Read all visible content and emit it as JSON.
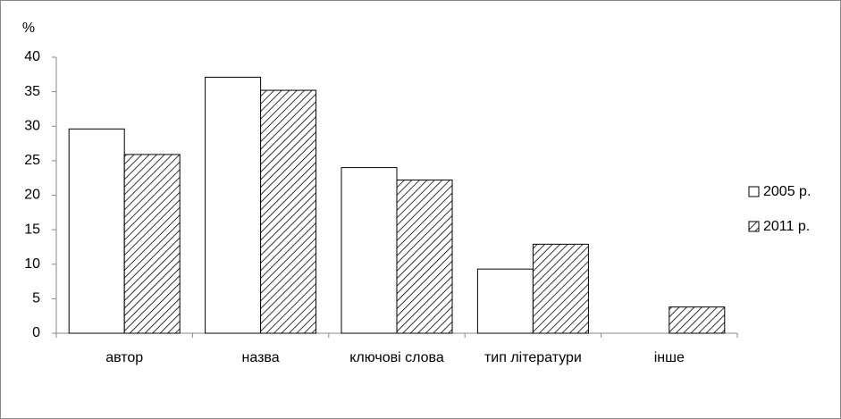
{
  "chart_data": {
    "type": "bar",
    "y_label": "%",
    "categories": [
      "автор",
      "назва",
      "ключові слова",
      "тип літератури",
      "інше"
    ],
    "series": [
      {
        "name": "2005 р.",
        "color": "#ffffff",
        "hatch": false,
        "values": [
          29.6,
          37.1,
          24.0,
          9.3,
          0
        ]
      },
      {
        "name": "2011 р.",
        "color": "#ffffff",
        "hatch": true,
        "values": [
          25.9,
          35.2,
          22.2,
          12.9,
          3.8
        ]
      }
    ],
    "ylim": [
      0,
      40
    ],
    "yticks": [
      0,
      5,
      10,
      15,
      20,
      25,
      30,
      35,
      40
    ],
    "grid": false,
    "legend": "right"
  }
}
